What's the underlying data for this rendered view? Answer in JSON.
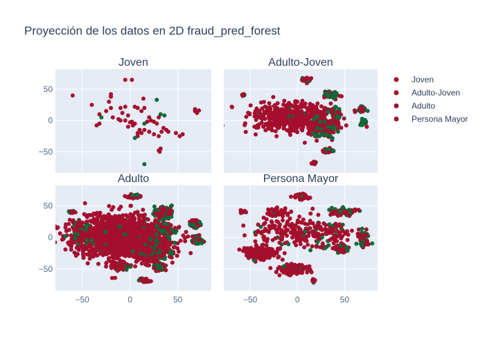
{
  "title": "Proyección de los datos en 2D fraud_pred_forest",
  "colors": {
    "background": "#ffffff",
    "plot_bg": "#E5ECF6",
    "grid": "#ffffff",
    "text": "#2a3f5f",
    "tick_text": "#506784",
    "red": "#a50f2d",
    "green": "#0b6b3a"
  },
  "legend": {
    "placement": "top-right",
    "entries": [
      {
        "label": "Joven",
        "color": "#a50f2d"
      },
      {
        "label": "Adulto-Joven",
        "color": "#a50f2d"
      },
      {
        "label": "Adulto",
        "color": "#a50f2d"
      },
      {
        "label": "Persona Mayor",
        "color": "#a50f2d"
      }
    ]
  },
  "chart_data": {
    "type": "scatter",
    "title": "Proyección de los datos en 2D fraud_pred_forest",
    "shared_axes": true,
    "xlim": [
      -78,
      85
    ],
    "ylim": [
      -84,
      82
    ],
    "xticks": [
      -50,
      0,
      50
    ],
    "yticks": [
      -50,
      0,
      50
    ],
    "grid": true,
    "legend_placement": "top-right",
    "point_colors": {
      "red": "#a50f2d",
      "green": "#0b6b3a"
    },
    "subplots": [
      {
        "name": "Joven",
        "title": "Joven",
        "clusters": [],
        "points": [
          [
            -60,
            40,
            "r"
          ],
          [
            -40,
            25,
            "r"
          ],
          [
            -20,
            42,
            "r"
          ],
          [
            -20,
            38,
            "r"
          ],
          [
            -22,
            30,
            "r"
          ],
          [
            -20,
            20,
            "r"
          ],
          [
            -25,
            15,
            "r"
          ],
          [
            -32,
            10,
            "r"
          ],
          [
            -30,
            5,
            "g"
          ],
          [
            -35,
            -8,
            "r"
          ],
          [
            -32,
            -5,
            "r"
          ],
          [
            -10,
            20,
            "r"
          ],
          [
            -8,
            12,
            "r"
          ],
          [
            -18,
            5,
            "r"
          ],
          [
            -12,
            2,
            "r"
          ],
          [
            -5,
            65,
            "r"
          ],
          [
            2,
            65,
            "r"
          ],
          [
            -5,
            22,
            "r"
          ],
          [
            -2,
            8,
            "r"
          ],
          [
            -5,
            0,
            "r"
          ],
          [
            5,
            22,
            "r"
          ],
          [
            8,
            20,
            "r"
          ],
          [
            15,
            20,
            "r"
          ],
          [
            12,
            15,
            "r"
          ],
          [
            14,
            35,
            "r"
          ],
          [
            28,
            33,
            "g"
          ],
          [
            32,
            10,
            "g"
          ],
          [
            36,
            8,
            "g"
          ],
          [
            30,
            5,
            "r"
          ],
          [
            20,
            5,
            "r"
          ],
          [
            22,
            0,
            "r"
          ],
          [
            25,
            -2,
            "r"
          ],
          [
            18,
            -2,
            "r"
          ],
          [
            15,
            -5,
            "g"
          ],
          [
            28,
            -5,
            "r"
          ],
          [
            35,
            -12,
            "r"
          ],
          [
            40,
            -18,
            "r"
          ],
          [
            38,
            -15,
            "r"
          ],
          [
            33,
            -18,
            "r"
          ],
          [
            30,
            -25,
            "r"
          ],
          [
            25,
            -22,
            "r"
          ],
          [
            20,
            -18,
            "r"
          ],
          [
            15,
            -15,
            "r"
          ],
          [
            12,
            -20,
            "r"
          ],
          [
            10,
            -15,
            "r"
          ],
          [
            8,
            -25,
            "r"
          ],
          [
            8,
            -20,
            "r"
          ],
          [
            5,
            -28,
            "g"
          ],
          [
            -2,
            -10,
            "r"
          ],
          [
            3,
            -8,
            "r"
          ],
          [
            5,
            -5,
            "r"
          ],
          [
            2,
            -2,
            "r"
          ],
          [
            0,
            -3,
            "r"
          ],
          [
            48,
            -20,
            "r"
          ],
          [
            52,
            -25,
            "r"
          ],
          [
            55,
            -22,
            "r"
          ],
          [
            32,
            -45,
            "r"
          ],
          [
            30,
            -48,
            "r"
          ],
          [
            31,
            -50,
            "r"
          ],
          [
            15,
            -70,
            "g"
          ],
          [
            68,
            18,
            "r"
          ],
          [
            70,
            12,
            "r"
          ],
          [
            68,
            15,
            "r"
          ],
          [
            72,
            16,
            "r"
          ],
          [
            -10,
            0,
            "r"
          ]
        ]
      },
      {
        "name": "Adulto-Joven",
        "title": "Adulto-Joven",
        "clusters": [
          {
            "cx": -5,
            "cy": 5,
            "rx": 38,
            "ry": 22,
            "n": 520,
            "g": 0.03
          },
          {
            "cx": 28,
            "cy": -12,
            "rx": 12,
            "ry": 14,
            "n": 150,
            "g": 0.3
          },
          {
            "cx": 10,
            "cy": 65,
            "rx": 6,
            "ry": 3,
            "n": 30,
            "g": 0.2
          },
          {
            "cx": 35,
            "cy": 42,
            "rx": 6,
            "ry": 5,
            "n": 50,
            "g": 0.6
          },
          {
            "cx": 40,
            "cy": 12,
            "rx": 5,
            "ry": 6,
            "n": 45,
            "g": 0.65
          },
          {
            "cx": 68,
            "cy": 18,
            "rx": 4,
            "ry": 5,
            "n": 30,
            "g": 0.5
          },
          {
            "cx": 70,
            "cy": -3,
            "rx": 3,
            "ry": 5,
            "n": 20,
            "g": 0.6
          },
          {
            "cx": 32,
            "cy": -48,
            "rx": 5,
            "ry": 3,
            "n": 25,
            "g": 0.25
          },
          {
            "cx": 18,
            "cy": -68,
            "rx": 3,
            "ry": 2,
            "n": 10,
            "g": 0.1
          },
          {
            "cx": -58,
            "cy": 40,
            "rx": 2,
            "ry": 2,
            "n": 8,
            "g": 0.6
          }
        ],
        "points": []
      },
      {
        "name": "Adulto",
        "title": "Adulto",
        "clusters": [
          {
            "cx": -10,
            "cy": 2,
            "rx": 42,
            "ry": 30,
            "n": 1600,
            "g": 0.04
          },
          {
            "cx": 22,
            "cy": -20,
            "rx": 15,
            "ry": 20,
            "n": 300,
            "g": 0.25
          },
          {
            "cx": 35,
            "cy": 38,
            "rx": 8,
            "ry": 8,
            "n": 120,
            "g": 0.45
          },
          {
            "cx": 38,
            "cy": 12,
            "rx": 7,
            "ry": 8,
            "n": 120,
            "g": 0.6
          },
          {
            "cx": 68,
            "cy": 22,
            "rx": 5,
            "ry": 6,
            "n": 60,
            "g": 0.5
          },
          {
            "cx": 70,
            "cy": -3,
            "rx": 4,
            "ry": 6,
            "n": 50,
            "g": 0.55
          },
          {
            "cx": 5,
            "cy": 65,
            "rx": 6,
            "ry": 3,
            "n": 50,
            "g": 0.35
          },
          {
            "cx": 30,
            "cy": -48,
            "rx": 6,
            "ry": 4,
            "n": 60,
            "g": 0.3
          },
          {
            "cx": 15,
            "cy": -68,
            "rx": 4,
            "ry": 3,
            "n": 25,
            "g": 0.15
          },
          {
            "cx": -10,
            "cy": -45,
            "rx": 10,
            "ry": 6,
            "n": 80,
            "g": 0.2
          },
          {
            "cx": -60,
            "cy": 40,
            "rx": 3,
            "ry": 2,
            "n": 15,
            "g": 0.2
          },
          {
            "cx": -50,
            "cy": 5,
            "rx": 10,
            "ry": 12,
            "n": 120,
            "g": 0.15
          }
        ],
        "points": []
      },
      {
        "name": "Persona Mayor",
        "title": "Persona Mayor",
        "clusters": [
          {
            "cx": -5,
            "cy": -50,
            "rx": 12,
            "ry": 6,
            "n": 220,
            "g": 0.05
          },
          {
            "cx": -38,
            "cy": -25,
            "rx": 15,
            "ry": 8,
            "n": 200,
            "g": 0.05
          },
          {
            "cx": 5,
            "cy": 65,
            "rx": 6,
            "ry": 4,
            "n": 60,
            "g": 0.05
          },
          {
            "cx": 48,
            "cy": 40,
            "rx": 12,
            "ry": 5,
            "n": 90,
            "g": 0.25
          },
          {
            "cx": 30,
            "cy": 8,
            "rx": 25,
            "ry": 20,
            "n": 110,
            "g": 0.15
          },
          {
            "cx": 45,
            "cy": -18,
            "rx": 8,
            "ry": 7,
            "n": 70,
            "g": 0.3
          },
          {
            "cx": 70,
            "cy": 0,
            "rx": 6,
            "ry": 12,
            "n": 55,
            "g": 0.4
          },
          {
            "cx": -10,
            "cy": 10,
            "rx": 30,
            "ry": 25,
            "n": 140,
            "g": 0.05
          },
          {
            "cx": 18,
            "cy": -68,
            "rx": 3,
            "ry": 2,
            "n": 15,
            "g": 0.05
          },
          {
            "cx": -58,
            "cy": 40,
            "rx": 3,
            "ry": 2,
            "n": 12,
            "g": 0.2
          },
          {
            "cx": -20,
            "cy": 40,
            "rx": 10,
            "ry": 8,
            "n": 30,
            "g": 0.05
          }
        ],
        "points": []
      }
    ]
  }
}
